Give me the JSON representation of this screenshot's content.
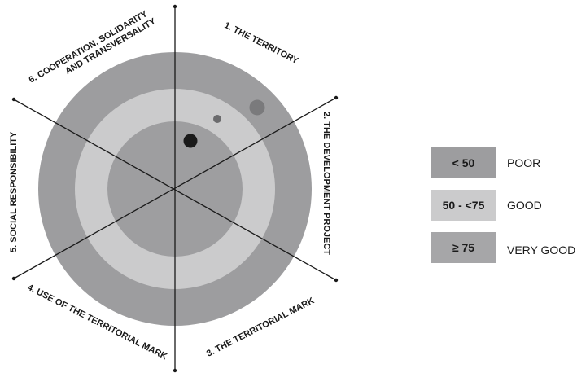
{
  "diagram": {
    "axes": [
      {
        "id": "territory",
        "lines": [
          "1. THE TERRITORY"
        ]
      },
      {
        "id": "development-project",
        "lines": [
          "2. THE DEVELOPMENT PROJECT"
        ]
      },
      {
        "id": "territorial-mark",
        "lines": [
          "3. THE TERRITORIAL MARK"
        ]
      },
      {
        "id": "use-of-territorial-mark",
        "lines": [
          "4. USE OF THE TERRITORIAL MARK"
        ]
      },
      {
        "id": "social-responsibility",
        "lines": [
          "5. SOCIAL RESPONSIBILITY"
        ]
      },
      {
        "id": "cooperation",
        "lines": [
          "6. COOPERATION, SOLIDARITY",
          "AND TRANSVERSALITY"
        ]
      }
    ],
    "colors": {
      "poor": "#9d9d9f",
      "good": "#cbcbcc",
      "very_good": "#a6a6a8",
      "axis_line": "#1a1a1a",
      "dot_dark": "#1a1a1a",
      "dot_mid": "#6b6b6d",
      "dot_large": "#7a7a7c"
    }
  },
  "legend": [
    {
      "range": "< 50",
      "label": "POOR",
      "color": "#9d9d9f"
    },
    {
      "range": "50 - <75",
      "label": "GOOD",
      "color": "#cbcbcc"
    },
    {
      "range": "≥ 75",
      "label": "VERY GOOD",
      "color": "#a6a6a8"
    }
  ]
}
